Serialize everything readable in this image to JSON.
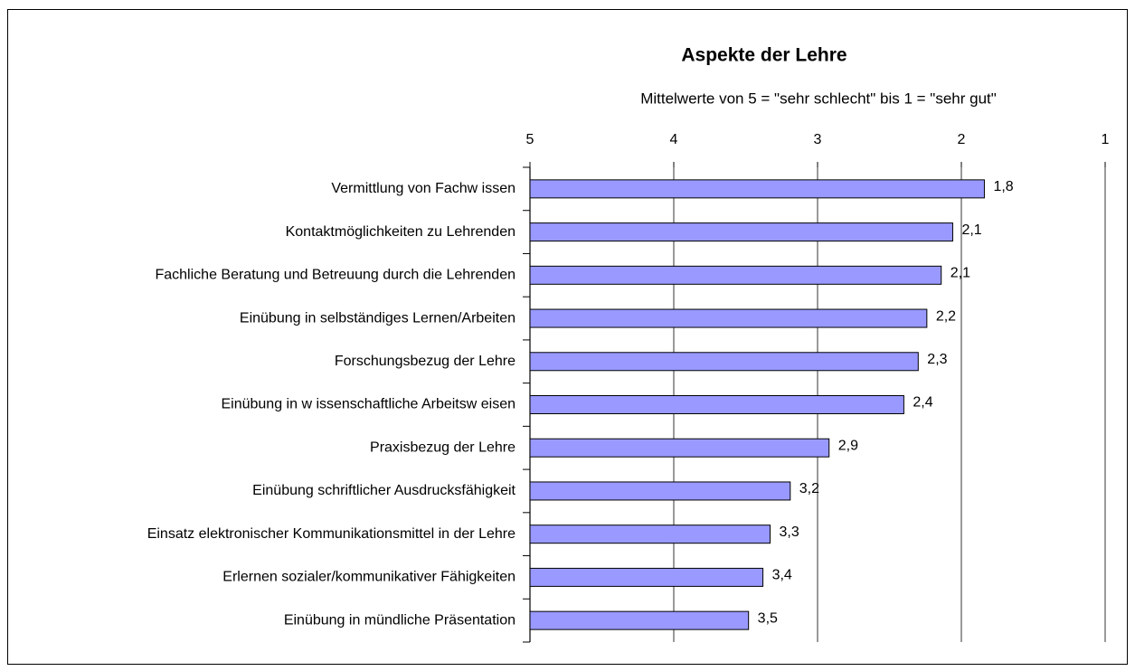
{
  "chart_data": {
    "type": "bar",
    "orientation": "horizontal",
    "title": "Aspekte der Lehre",
    "subtitle": "Mittelwerte von 5 = \"sehr schlecht\" bis 1 = \"sehr gut\"",
    "categories": [
      "Vermittlung von Fachw issen",
      "Kontaktmöglichkeiten zu Lehrenden",
      "Fachliche Beratung und Betreuung durch die Lehrenden",
      "Einübung in selbständiges Lernen/Arbeiten",
      "Forschungsbezug der Lehre",
      "Einübung in w issenschaftliche Arbeitsw eisen",
      "Praxisbezug der Lehre",
      "Einübung schriftlicher Ausdrucksfähigkeit",
      "Einsatz elektronischer Kommunikationsmittel in der Lehre",
      "Erlernen sozialer/kommunikativer Fähigkeiten",
      "Einübung in mündliche Präsentation"
    ],
    "values": [
      1.84,
      2.06,
      2.14,
      2.24,
      2.3,
      2.4,
      2.92,
      3.19,
      3.33,
      3.38,
      3.48
    ],
    "value_labels": [
      "1,8",
      "2,1",
      "2,1",
      "2,2",
      "2,3",
      "2,4",
      "2,9",
      "3,2",
      "3,3",
      "3,4",
      "3,5"
    ],
    "color": "#9999ff",
    "xlim": [
      5,
      1
    ],
    "xticks": [
      5,
      4,
      3,
      2,
      1
    ],
    "grid": true
  }
}
